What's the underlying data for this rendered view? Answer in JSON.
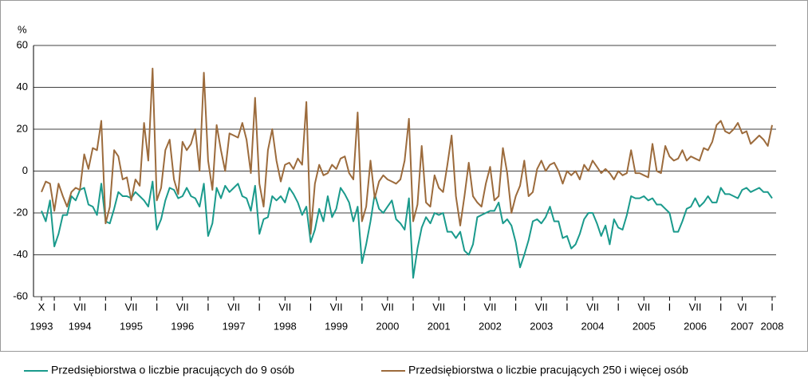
{
  "chart_data": {
    "type": "line",
    "y_label": "%",
    "x": [
      "1993-10",
      "1993-11",
      "1993-12",
      "1994-01",
      "1994-02",
      "1994-03",
      "1994-04",
      "1994-05",
      "1994-06",
      "1994-07",
      "1994-08",
      "1994-09",
      "1994-10",
      "1994-11",
      "1994-12",
      "1995-01",
      "1995-02",
      "1995-03",
      "1995-04",
      "1995-05",
      "1995-06",
      "1995-07",
      "1995-08",
      "1995-09",
      "1995-10",
      "1995-11",
      "1995-12",
      "1996-01",
      "1996-02",
      "1996-03",
      "1996-04",
      "1996-05",
      "1996-06",
      "1996-07",
      "1996-08",
      "1996-09",
      "1996-10",
      "1996-11",
      "1996-12",
      "1997-01",
      "1997-02",
      "1997-03",
      "1997-04",
      "1997-05",
      "1997-06",
      "1997-07",
      "1997-08",
      "1997-09",
      "1997-10",
      "1997-11",
      "1997-12",
      "1998-01",
      "1998-02",
      "1998-03",
      "1998-04",
      "1998-05",
      "1998-06",
      "1998-07",
      "1998-08",
      "1998-09",
      "1998-10",
      "1998-11",
      "1998-12",
      "1999-01",
      "1999-02",
      "1999-03",
      "1999-04",
      "1999-05",
      "1999-06",
      "1999-07",
      "1999-08",
      "1999-09",
      "1999-10",
      "1999-11",
      "1999-12",
      "2000-01",
      "2000-02",
      "2000-03",
      "2000-04",
      "2000-05",
      "2000-06",
      "2000-07",
      "2000-08",
      "2000-09",
      "2000-10",
      "2000-11",
      "2000-12",
      "2001-01",
      "2001-02",
      "2001-03",
      "2001-04",
      "2001-05",
      "2001-06",
      "2001-07",
      "2001-08",
      "2001-09",
      "2001-10",
      "2001-11",
      "2001-12",
      "2002-01",
      "2002-02",
      "2002-03",
      "2002-04",
      "2002-05",
      "2002-06",
      "2002-07",
      "2002-08",
      "2002-09",
      "2002-10",
      "2002-11",
      "2002-12",
      "2003-01",
      "2003-02",
      "2003-03",
      "2003-04",
      "2003-05",
      "2003-06",
      "2003-07",
      "2003-08",
      "2003-09",
      "2003-10",
      "2003-11",
      "2003-12",
      "2004-01",
      "2004-02",
      "2004-03",
      "2004-04",
      "2004-05",
      "2004-06",
      "2004-07",
      "2004-08",
      "2004-09",
      "2004-10",
      "2004-11",
      "2004-12",
      "2005-01",
      "2005-02",
      "2005-03",
      "2005-04",
      "2005-05",
      "2005-06",
      "2005-07",
      "2005-08",
      "2005-09",
      "2005-10",
      "2005-11",
      "2005-12",
      "2006-01",
      "2006-02",
      "2006-03",
      "2006-04",
      "2006-05",
      "2006-06",
      "2006-07",
      "2006-08",
      "2006-09",
      "2006-10",
      "2006-11",
      "2006-12",
      "2007-01",
      "2007-02",
      "2007-03",
      "2007-04",
      "2007-05",
      "2007-06",
      "2007-07",
      "2007-08",
      "2007-09",
      "2007-10",
      "2007-11",
      "2007-12",
      "2008-01"
    ],
    "series": [
      {
        "name": "Przedsiębiorstwa o liczbie pracujących do 9 osób",
        "color": "#1a9a8c",
        "values": [
          -19,
          -24,
          -14,
          -36,
          -30,
          -21,
          -21,
          -12,
          -14,
          -9,
          -8,
          -16,
          -17,
          -21,
          -6,
          -24,
          -25,
          -18,
          -10,
          -12,
          -12,
          -13,
          -10,
          -12,
          -14,
          -17,
          -5,
          -28,
          -23,
          -14,
          -8,
          -9,
          -13,
          -12,
          -8,
          -12,
          -13,
          -17,
          -6,
          -31,
          -25,
          -8,
          -13,
          -7,
          -10,
          -8,
          -6,
          -12,
          -13,
          -19,
          -7,
          -30,
          -23,
          -22,
          -12,
          -14,
          -12,
          -15,
          -8,
          -11,
          -15,
          -21,
          -17,
          -34,
          -28,
          -18,
          -24,
          -12,
          -22,
          -18,
          -8,
          -11,
          -15,
          -24,
          -17,
          -44,
          -35,
          -24,
          -11,
          -18,
          -20,
          -17,
          -14,
          -23,
          -25,
          -28,
          -13,
          -51,
          -37,
          -27,
          -22,
          -25,
          -20,
          -21,
          -20,
          -29,
          -29,
          -32,
          -29,
          -38,
          -40,
          -35,
          -22,
          -21,
          -20,
          -19,
          -19,
          -15,
          -25,
          -23,
          -26,
          -34,
          -46,
          -40,
          -33,
          -24,
          -23,
          -25,
          -22,
          -17,
          -24,
          -24,
          -32,
          -31,
          -37,
          -35,
          -30,
          -23,
          -20,
          -20,
          -25,
          -31,
          -26,
          -35,
          -23,
          -27,
          -28,
          -21,
          -12,
          -13,
          -13,
          -12,
          -14,
          -13,
          -16,
          -16,
          -18,
          -20,
          -29,
          -29,
          -24,
          -18,
          -17,
          -13,
          -17,
          -15,
          -12,
          -15,
          -15,
          -8,
          -11,
          -11,
          -12,
          -13,
          -9,
          -8,
          -10,
          -9,
          -8,
          -10,
          -10,
          -13
        ]
      },
      {
        "name": "Przedsiębiorstwa o liczbie pracujących 250 i więcej osób",
        "color": "#9c6b3c",
        "values": [
          -10,
          -5,
          -6,
          -19,
          -6,
          -12,
          -17,
          -10,
          -8,
          -9,
          8,
          1,
          11,
          10,
          24,
          -25,
          -17,
          10,
          7,
          -4,
          -3,
          -14,
          -4,
          -7,
          23,
          5,
          49,
          -14,
          -8,
          10,
          15,
          -4,
          -11,
          14,
          10,
          13,
          20,
          0,
          47,
          5,
          -9,
          22,
          10,
          0,
          18,
          17,
          16,
          23,
          15,
          -1,
          35,
          -6,
          -17,
          10,
          20,
          5,
          -5,
          3,
          4,
          1,
          6,
          3,
          33,
          -30,
          -6,
          3,
          -2,
          -1,
          3,
          1,
          6,
          7,
          -1,
          -4,
          28,
          -24,
          -17,
          5,
          -13,
          -5,
          -2,
          -4,
          -5,
          -6,
          -4,
          5,
          25,
          -24,
          -16,
          12,
          -15,
          -17,
          -2,
          -8,
          -10,
          3,
          17,
          -12,
          -26,
          -12,
          4,
          -12,
          -15,
          -17,
          -6,
          2,
          -14,
          -12,
          11,
          -1,
          -20,
          -12,
          -7,
          5,
          -12,
          -10,
          1,
          5,
          0,
          3,
          4,
          0,
          -6,
          0,
          -2,
          0,
          -4,
          3,
          0,
          5,
          2,
          -1,
          1,
          -1,
          -4,
          0,
          -2,
          -1,
          10,
          -1,
          -1,
          -2,
          -3,
          13,
          0,
          -1,
          12,
          7,
          5,
          6,
          10,
          5,
          7,
          6,
          5,
          11,
          10,
          14,
          22,
          24,
          19,
          18,
          20,
          23,
          18,
          19,
          13,
          15,
          17,
          15,
          12,
          22
        ]
      }
    ],
    "ylim": [
      -60,
      60
    ],
    "yticks": [
      -60,
      -40,
      -20,
      0,
      20,
      40,
      60
    ],
    "grid": true,
    "xlim": [
      "1993-10",
      "2008-01"
    ],
    "xticks": [
      {
        "value": "1993-10",
        "label": "X"
      },
      {
        "value": "1994-01",
        "label": "I"
      },
      {
        "value": "1994-07",
        "label": "VII"
      },
      {
        "value": "1995-01",
        "label": "I"
      },
      {
        "value": "1995-07",
        "label": "VII"
      },
      {
        "value": "1996-01",
        "label": "I"
      },
      {
        "value": "1996-07",
        "label": "VII"
      },
      {
        "value": "1997-01",
        "label": "I"
      },
      {
        "value": "1997-07",
        "label": "VII"
      },
      {
        "value": "1998-01",
        "label": "I"
      },
      {
        "value": "1998-07",
        "label": "VII"
      },
      {
        "value": "1999-01",
        "label": "I"
      },
      {
        "value": "1999-07",
        "label": "VII"
      },
      {
        "value": "2000-01",
        "label": "I"
      },
      {
        "value": "2000-07",
        "label": "VII"
      },
      {
        "value": "2001-01",
        "label": "I"
      },
      {
        "value": "2001-07",
        "label": "VII"
      },
      {
        "value": "2002-01",
        "label": "I"
      },
      {
        "value": "2002-07",
        "label": "VII"
      },
      {
        "value": "2003-01",
        "label": "I"
      },
      {
        "value": "2003-07",
        "label": "VII"
      },
      {
        "value": "2004-01",
        "label": "I"
      },
      {
        "value": "2004-07",
        "label": "VII"
      },
      {
        "value": "2005-01",
        "label": "I"
      },
      {
        "value": "2005-07",
        "label": "VII"
      },
      {
        "value": "2006-01",
        "label": "I"
      },
      {
        "value": "2006-07",
        "label": "VII"
      },
      {
        "value": "2007-01",
        "label": "I"
      },
      {
        "value": "2007-06",
        "label": "VI"
      },
      {
        "value": "2008-01",
        "label": "I"
      }
    ],
    "xticks_year": [
      {
        "value": "1993-10",
        "label": "1993"
      },
      {
        "value": "1994-07",
        "label": "1994"
      },
      {
        "value": "1995-07",
        "label": "1995"
      },
      {
        "value": "1996-07",
        "label": "1996"
      },
      {
        "value": "1997-07",
        "label": "1997"
      },
      {
        "value": "1998-07",
        "label": "1998"
      },
      {
        "value": "1999-07",
        "label": "1999"
      },
      {
        "value": "2000-07",
        "label": "2000"
      },
      {
        "value": "2001-07",
        "label": "2001"
      },
      {
        "value": "2002-07",
        "label": "2002"
      },
      {
        "value": "2003-07",
        "label": "2003"
      },
      {
        "value": "2004-07",
        "label": "2004"
      },
      {
        "value": "2005-07",
        "label": "2005"
      },
      {
        "value": "2006-07",
        "label": "2006"
      },
      {
        "value": "2007-06",
        "label": "2007"
      },
      {
        "value": "2008-01",
        "label": "2008"
      }
    ]
  }
}
